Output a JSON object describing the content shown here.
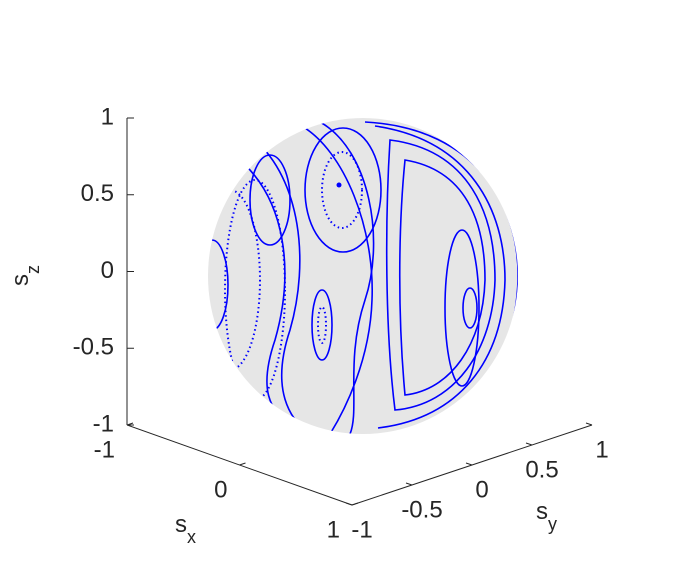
{
  "chart_data": {
    "type": "sphere-section",
    "xlabel": {
      "base": "s",
      "sub": "x"
    },
    "ylabel": {
      "base": "s",
      "sub": "y"
    },
    "zlabel": {
      "base": "s",
      "sub": "z"
    },
    "xlim": [
      -1,
      1
    ],
    "xticks": [
      -1,
      0,
      1
    ],
    "ylim": [
      -1,
      1
    ],
    "yticks": [
      -1,
      -0.5,
      0,
      0.5,
      1
    ],
    "zlim": [
      -1,
      1
    ],
    "zticks": [
      -1,
      -0.5,
      0,
      0.5,
      1
    ],
    "color": "#0000ff",
    "sphere_color": "#e6e6e6"
  }
}
